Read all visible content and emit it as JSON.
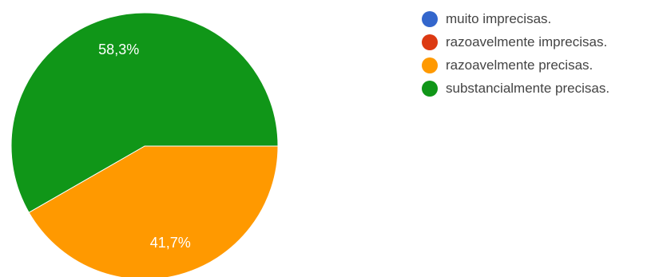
{
  "chart_data": {
    "type": "pie",
    "categories": [
      "muito imprecisas.",
      "razoavelmente imprecisas.",
      "razoavelmente precisas.",
      "substancialmente precisas."
    ],
    "values": [
      0,
      0,
      41.7,
      58.3
    ],
    "data_labels": [
      "",
      "",
      "41,7%",
      "58,3%"
    ],
    "colors": [
      "#3366cc",
      "#dc3912",
      "#ff9900",
      "#109618"
    ],
    "legend_position": "right"
  }
}
